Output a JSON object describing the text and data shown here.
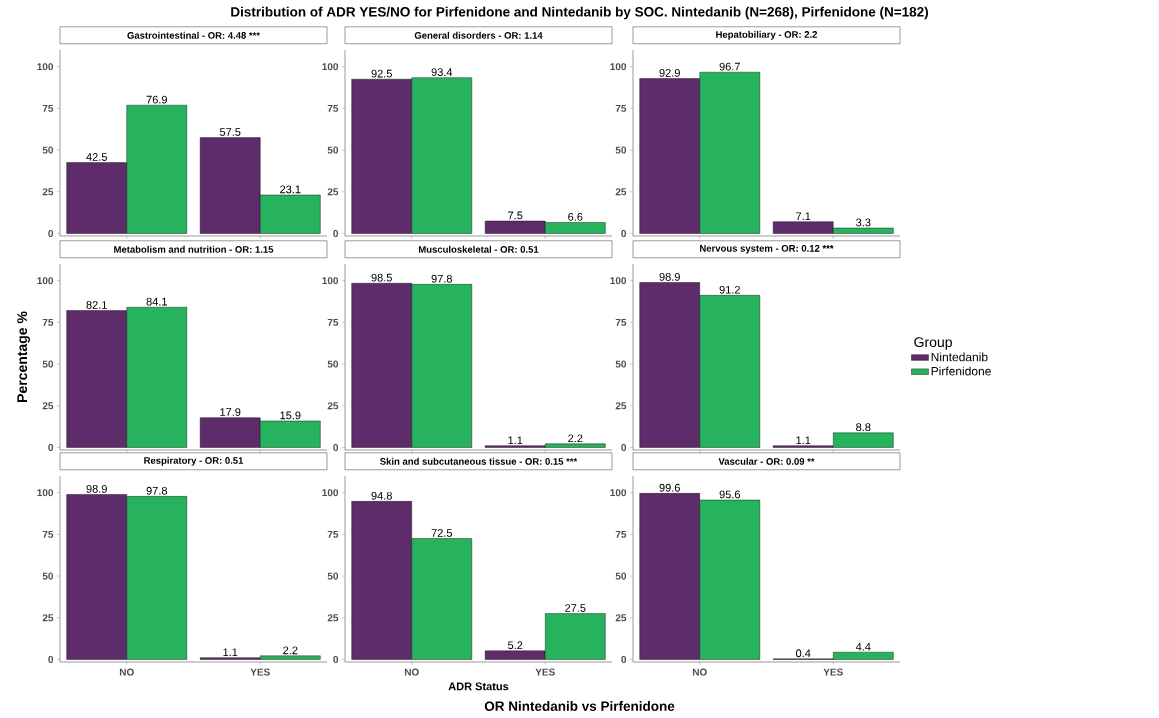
{
  "chart_data": [
    {
      "type": "bar",
      "title": "Gastrointestinal - OR: 4.48 ***",
      "annotations": [
        "Distribution of ADR YES/NO for Pirfenidone and Nintedanib by SOC. Nintedanib (N=268), Pirfenidone (N=182)"
      ],
      "categories": [
        null,
        null
      ],
      "ylim": [
        -1.5,
        110
      ],
      "yticks": [
        0,
        25,
        50,
        75,
        100
      ],
      "tick_labels": "y",
      "data_labels": true,
      "series": [
        {
          "color": "#5e2c6b",
          "values": [
            42.5,
            57.5
          ]
        },
        {
          "color": "#27b35e",
          "values": [
            76.9,
            23.1
          ]
        }
      ]
    },
    {
      "type": "bar",
      "title": "General disorders - OR: 1.14",
      "categories": [
        null,
        null
      ],
      "ylim": [
        -1.5,
        110
      ],
      "yticks": [
        0,
        25,
        50,
        75,
        100
      ],
      "tick_labels": "y",
      "data_labels": true,
      "series": [
        {
          "color": "#5e2c6b",
          "values": [
            92.5,
            7.5
          ]
        },
        {
          "color": "#27b35e",
          "values": [
            93.4,
            6.6
          ]
        }
      ]
    },
    {
      "type": "bar",
      "title": "Hepatobiliary - OR: 2.2",
      "categories": [
        null,
        null
      ],
      "ylim": [
        -1.5,
        110
      ],
      "yticks": [
        0,
        25,
        50,
        75,
        100
      ],
      "tick_labels": "y",
      "data_labels": true,
      "series": [
        {
          "color": "#5e2c6b",
          "values": [
            92.9,
            7.1
          ]
        },
        {
          "color": "#27b35e",
          "values": [
            96.7,
            3.3
          ]
        }
      ]
    },
    {
      "type": "bar",
      "title": "Metabolism and nutrition - OR: 1.15",
      "ylabel": "Percentage %",
      "categories": [
        null,
        null
      ],
      "ylim": [
        -1.5,
        110
      ],
      "yticks": [
        0,
        25,
        50,
        75,
        100
      ],
      "tick_labels": "y",
      "data_labels": true,
      "series": [
        {
          "color": "#5e2c6b",
          "values": [
            82.1,
            17.9
          ]
        },
        {
          "color": "#27b35e",
          "values": [
            84.1,
            15.9
          ]
        }
      ]
    },
    {
      "type": "bar",
      "title": "Musculoskeletal - OR: 0.51",
      "categories": [
        null,
        null
      ],
      "ylim": [
        -1.5,
        110
      ],
      "yticks": [
        0,
        25,
        50,
        75,
        100
      ],
      "tick_labels": "y",
      "data_labels": true,
      "series": [
        {
          "color": "#5e2c6b",
          "values": [
            98.5,
            1.1
          ]
        },
        {
          "color": "#27b35e",
          "values": [
            97.8,
            2.2
          ]
        }
      ]
    },
    {
      "type": "bar",
      "title": "Nervous system - OR: 0.12 ***",
      "legend": "right",
      "legend_title": "Group",
      "categories": [
        null,
        null
      ],
      "ylim": [
        -1.5,
        110
      ],
      "yticks": [
        0,
        25,
        50,
        75,
        100
      ],
      "tick_labels": "y",
      "data_labels": true,
      "series": [
        {
          "name": "Nintedanib",
          "color": "#5e2c6b",
          "values": [
            98.9,
            1.1
          ]
        },
        {
          "name": "Pirfenidone",
          "color": "#27b35e",
          "values": [
            91.2,
            8.8
          ]
        }
      ]
    },
    {
      "type": "bar",
      "title": "Respiratory - OR: 0.51",
      "categories": [
        "NO",
        "YES"
      ],
      "ylim": [
        -1.5,
        110
      ],
      "yticks": [
        0,
        25,
        50,
        75,
        100
      ],
      "data_labels": true,
      "series": [
        {
          "color": "#5e2c6b",
          "values": [
            98.9,
            1.1
          ]
        },
        {
          "color": "#27b35e",
          "values": [
            97.8,
            2.2
          ]
        }
      ]
    },
    {
      "type": "bar",
      "title": "Skin and subcutaneous tissue - OR: 0.15 ***",
      "xlabel": "ADR Status",
      "annotations": [
        "OR Nintedanib vs Pirfenidone"
      ],
      "categories": [
        "NO",
        "YES"
      ],
      "ylim": [
        -1.5,
        110
      ],
      "yticks": [
        0,
        25,
        50,
        75,
        100
      ],
      "data_labels": true,
      "series": [
        {
          "color": "#5e2c6b",
          "values": [
            94.8,
            5.2
          ]
        },
        {
          "color": "#27b35e",
          "values": [
            72.5,
            27.5
          ]
        }
      ]
    },
    {
      "type": "bar",
      "title": "Vascular - OR: 0.09 **",
      "categories": [
        "NO",
        "YES"
      ],
      "ylim": [
        -1.5,
        110
      ],
      "yticks": [
        0,
        25,
        50,
        75,
        100
      ],
      "data_labels": true,
      "series": [
        {
          "color": "#5e2c6b",
          "values": [
            99.6,
            0.4
          ]
        },
        {
          "color": "#27b35e",
          "values": [
            95.6,
            4.4
          ]
        }
      ]
    }
  ]
}
